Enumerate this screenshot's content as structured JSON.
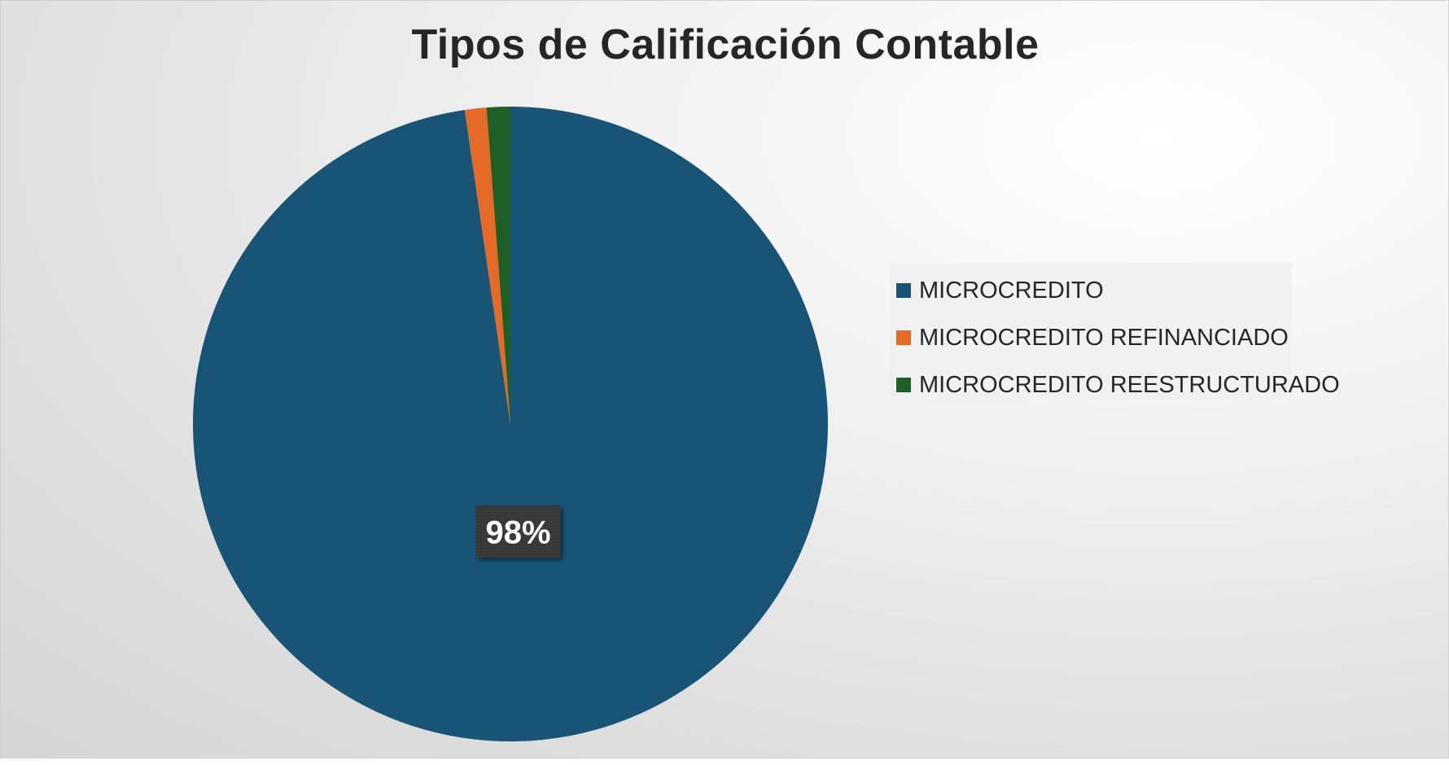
{
  "chart_data": {
    "type": "pie",
    "title": "Tipos de Calificación Contable",
    "categories": [
      "MICROCREDITO",
      "MICROCREDITO REFINANCIADO",
      "MICROCREDITO REESTRUCTURADO"
    ],
    "values": [
      97.7,
      1.1,
      1.2
    ],
    "colors": [
      "#185476",
      "#e46a25",
      "#1e5f27"
    ],
    "data_labels": [
      "98%",
      "",
      ""
    ],
    "legend_position": "right"
  }
}
